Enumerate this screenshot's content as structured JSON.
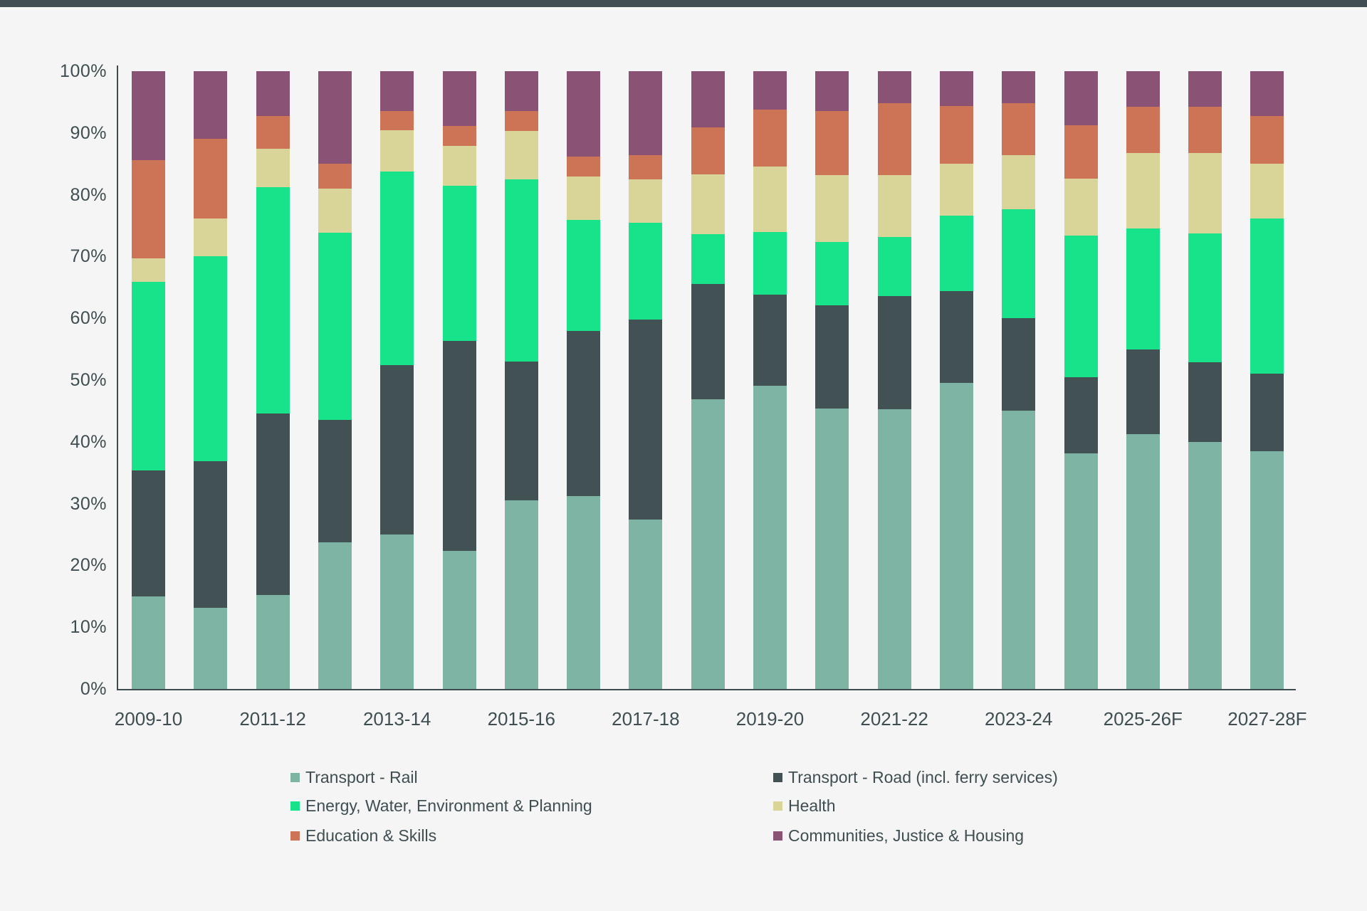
{
  "window": {
    "top_bar_color": "#424f52"
  },
  "page": {
    "background_color": "#f4f5f4",
    "text_color": "#3f4e52",
    "axis_color": "#3d4c4f"
  },
  "chart_data": {
    "type": "bar",
    "variant": "stacked-100-percent",
    "title": "",
    "xlabel": "",
    "ylabel": "",
    "grid": false,
    "legend_position": "bottom",
    "y_axis": {
      "min": 0,
      "max": 100,
      "unit": "%",
      "ticks": [
        "0%",
        "10%",
        "20%",
        "30%",
        "40%",
        "50%",
        "60%",
        "70%",
        "80%",
        "90%",
        "100%"
      ]
    },
    "x_axis": {
      "visible_labels": [
        "2009-10",
        "2011-12",
        "2013-14",
        "2015-16",
        "2017-18",
        "2019-20",
        "2021-22",
        "2023-24",
        "2025-26F",
        "2027-28F"
      ]
    },
    "categories": [
      "2009-10",
      "2010-11",
      "2011-12",
      "2012-13",
      "2013-14",
      "2014-15",
      "2015-16",
      "2016-17",
      "2017-18",
      "2018-19",
      "2019-20",
      "2020-21",
      "2021-22",
      "2022-23",
      "2023-24",
      "2024-25",
      "2025-26F",
      "2026-27F",
      "2027-28F"
    ],
    "stack_order": "bottom-to-top",
    "series": [
      {
        "name": "Transport - Rail",
        "color": "#7eb4a3",
        "values": [
          15.0,
          13.1,
          15.2,
          23.7,
          25.0,
          22.3,
          30.5,
          31.2,
          27.4,
          46.9,
          49.1,
          45.4,
          45.3,
          49.5,
          45.0,
          38.1,
          41.3,
          40.0,
          38.5
        ]
      },
      {
        "name": "Transport - Road (incl. ferry services)",
        "color": "#425154",
        "values": [
          20.4,
          23.8,
          29.4,
          19.9,
          27.4,
          34.0,
          22.5,
          26.7,
          32.4,
          18.6,
          14.7,
          16.7,
          18.3,
          14.9,
          15.0,
          12.4,
          13.6,
          12.9,
          12.5
        ]
      },
      {
        "name": "Energy, Water, Environment & Planning",
        "color": "#17e38a",
        "values": [
          30.5,
          33.1,
          36.6,
          30.2,
          31.4,
          25.1,
          29.5,
          18.0,
          15.7,
          8.1,
          10.2,
          10.2,
          9.6,
          12.2,
          17.6,
          22.9,
          19.6,
          20.8,
          25.2
        ]
      },
      {
        "name": "Health",
        "color": "#d9d598",
        "values": [
          3.8,
          6.2,
          6.2,
          7.2,
          6.6,
          6.5,
          7.8,
          7.0,
          7.0,
          9.7,
          10.6,
          10.9,
          10.0,
          8.4,
          8.8,
          9.2,
          12.3,
          13.1,
          8.8
        ]
      },
      {
        "name": "Education & Skills",
        "color": "#cd7457",
        "values": [
          15.9,
          12.9,
          5.3,
          4.0,
          3.2,
          3.2,
          3.3,
          3.3,
          3.9,
          7.6,
          9.2,
          10.4,
          11.6,
          9.4,
          8.4,
          8.7,
          7.5,
          7.4,
          7.8
        ]
      },
      {
        "name": "Communities, Justice & Housing",
        "color": "#8a5274",
        "values": [
          14.4,
          10.9,
          7.3,
          15.0,
          6.4,
          8.9,
          6.4,
          13.8,
          13.6,
          9.1,
          6.2,
          6.4,
          5.2,
          5.6,
          5.2,
          8.7,
          5.7,
          5.8,
          7.2
        ]
      }
    ],
    "legend": {
      "columns": [
        [
          "Transport - Rail",
          "Energy, Water, Environment & Planning",
          "Education & Skills"
        ],
        [
          "Transport - Road (incl. ferry services)",
          "Health",
          "Communities, Justice & Housing"
        ]
      ]
    }
  }
}
